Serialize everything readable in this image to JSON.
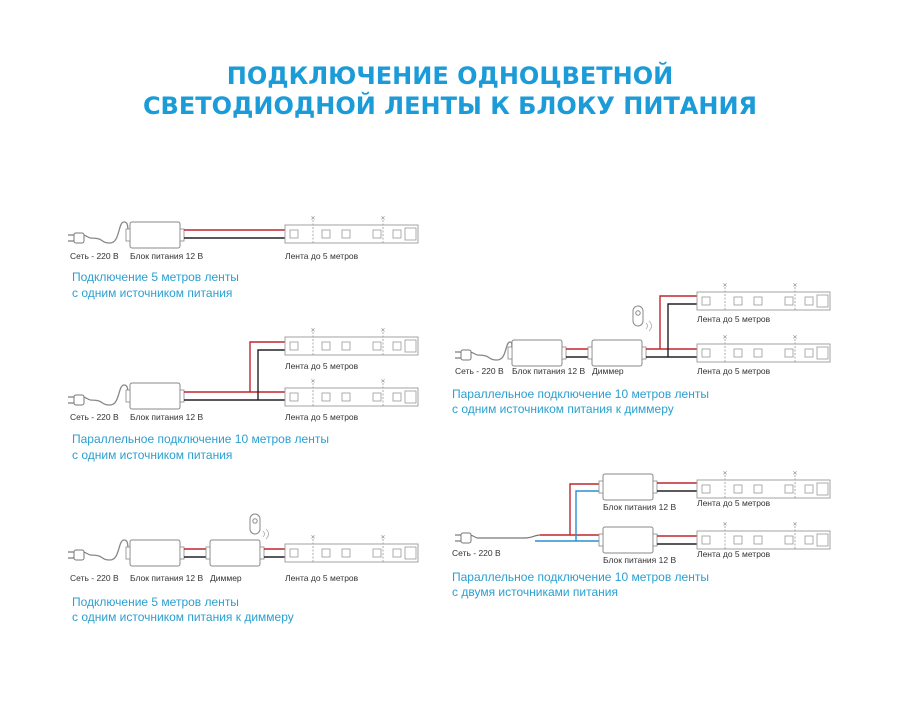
{
  "title": {
    "line1": "ПОДКЛЮЧЕНИЕ ОДНОЦВЕТНОЙ",
    "line2": "СВЕТОДИОДНОЙ ЛЕНТЫ К БЛОКУ ПИТАНИЯ"
  },
  "colors": {
    "accent": "#1b9bd7",
    "wire_positive": "#c0272d",
    "wire_negative": "#222222",
    "wire_mains_blue": "#2a8fd0"
  },
  "labels": {
    "mains": "Сеть - 220 В",
    "psu": "Блок питания 12 В",
    "strip": "Лента до 5 метров",
    "dimmer": "Диммер"
  },
  "diagrams": [
    {
      "caption": [
        "Подключение 5 метров ленты",
        "с одним источником питания"
      ]
    },
    {
      "caption": [
        "Параллельное подключение 10 метров ленты",
        "с одним источником питания"
      ]
    },
    {
      "caption": [
        "Подключение 5 метров ленты",
        "с одним источником питания к диммеру"
      ]
    },
    {
      "caption": [
        "Параллельное подключение 10 метров ленты",
        "с одним источником питания к диммеру"
      ]
    },
    {
      "caption": [
        "Параллельное подключение 10 метров ленты",
        "с двумя источниками питания"
      ]
    }
  ]
}
